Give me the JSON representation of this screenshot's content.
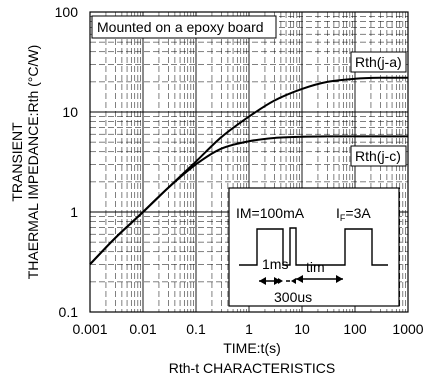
{
  "chart_data": {
    "type": "line",
    "x_scale": "log",
    "y_scale": "log",
    "xlim": [
      0.001,
      1000
    ],
    "ylim": [
      0.1,
      100
    ],
    "x_ticks": [
      "0.001",
      "0.01",
      "0.1",
      "1",
      "10",
      "100",
      "1000"
    ],
    "y_ticks": [
      "0.1",
      "1",
      "10",
      "100"
    ],
    "xlabel": "TIME:t(s)",
    "ylabel_line1": "TRANSIENT",
    "ylabel_line2": "THAERMAL IMPEDANCE:Rth (°C/W)",
    "caption": "Rth-t CHARACTERISTICS",
    "grid": true,
    "annotation": "Mounted on a epoxy board",
    "series": [
      {
        "name": "Rth(j-a)",
        "x": [
          0.001,
          0.003,
          0.01,
          0.03,
          0.1,
          0.3,
          1,
          3,
          10,
          30,
          100,
          300,
          1000
        ],
        "y": [
          0.3,
          0.55,
          1.0,
          1.75,
          3.2,
          5.6,
          9.0,
          13.0,
          17.0,
          20.0,
          21.5,
          22.0,
          22.0
        ]
      },
      {
        "name": "Rth(j-c)",
        "x": [
          0.001,
          0.003,
          0.01,
          0.03,
          0.1,
          0.3,
          1,
          3,
          10,
          30,
          100,
          300,
          1000
        ],
        "y": [
          0.3,
          0.55,
          1.0,
          1.75,
          3.0,
          4.3,
          5.1,
          5.5,
          5.65,
          5.7,
          5.7,
          5.7,
          5.7
        ]
      }
    ],
    "inset": {
      "im_label": "IM=100mA",
      "if_label_main": "I",
      "if_label_sub": "F",
      "if_label_rest": "=3A",
      "pulse_1ms": "1ms",
      "pulse_tim": "tim",
      "pulse_300us": "300us"
    }
  }
}
